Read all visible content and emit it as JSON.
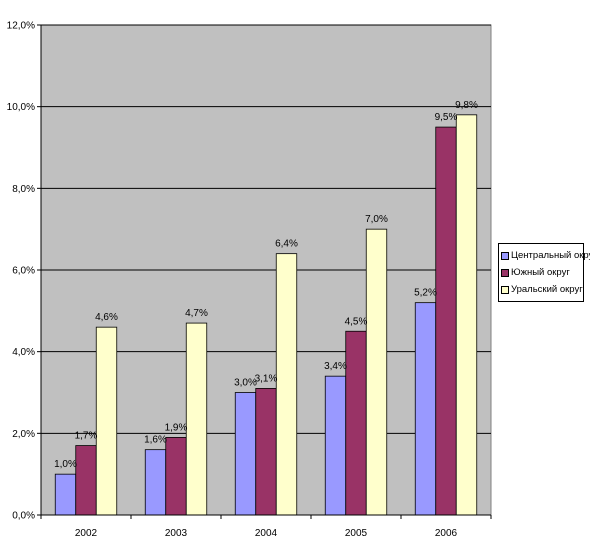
{
  "chart_data": {
    "type": "bar",
    "categories": [
      "2002",
      "2003",
      "2004",
      "2005",
      "2006"
    ],
    "series": [
      {
        "name": "Центральный округ",
        "color": "#9999ff",
        "values": [
          1.0,
          1.6,
          3.0,
          3.4,
          5.2
        ],
        "labels": [
          "1,0%",
          "1,6%",
          "3,0%",
          "3,4%",
          "5,2%"
        ]
      },
      {
        "name": "Южный округ",
        "color": "#993366",
        "values": [
          1.7,
          1.9,
          3.1,
          4.5,
          9.5
        ],
        "labels": [
          "1,7%",
          "1,9%",
          "3,1%",
          "4,5%",
          "9,5%"
        ]
      },
      {
        "name": "Уральский округ",
        "color": "#ffffcc",
        "values": [
          4.6,
          4.7,
          6.4,
          7.0,
          9.8
        ],
        "labels": [
          "4,6%",
          "4,7%",
          "6,4%",
          "7,0%",
          "9,8%"
        ]
      }
    ],
    "y_ticks": [
      0,
      2,
      4,
      6,
      8,
      10,
      12
    ],
    "y_tick_labels": [
      "0,0%",
      "2,0%",
      "4,0%",
      "6,0%",
      "8,0%",
      "10,0%",
      "12,0%"
    ],
    "ylim": [
      0,
      12
    ],
    "title": "",
    "xlabel": "",
    "ylabel": "",
    "grid": true,
    "legend_position": "right",
    "plot_background": "#c0c0c0"
  }
}
